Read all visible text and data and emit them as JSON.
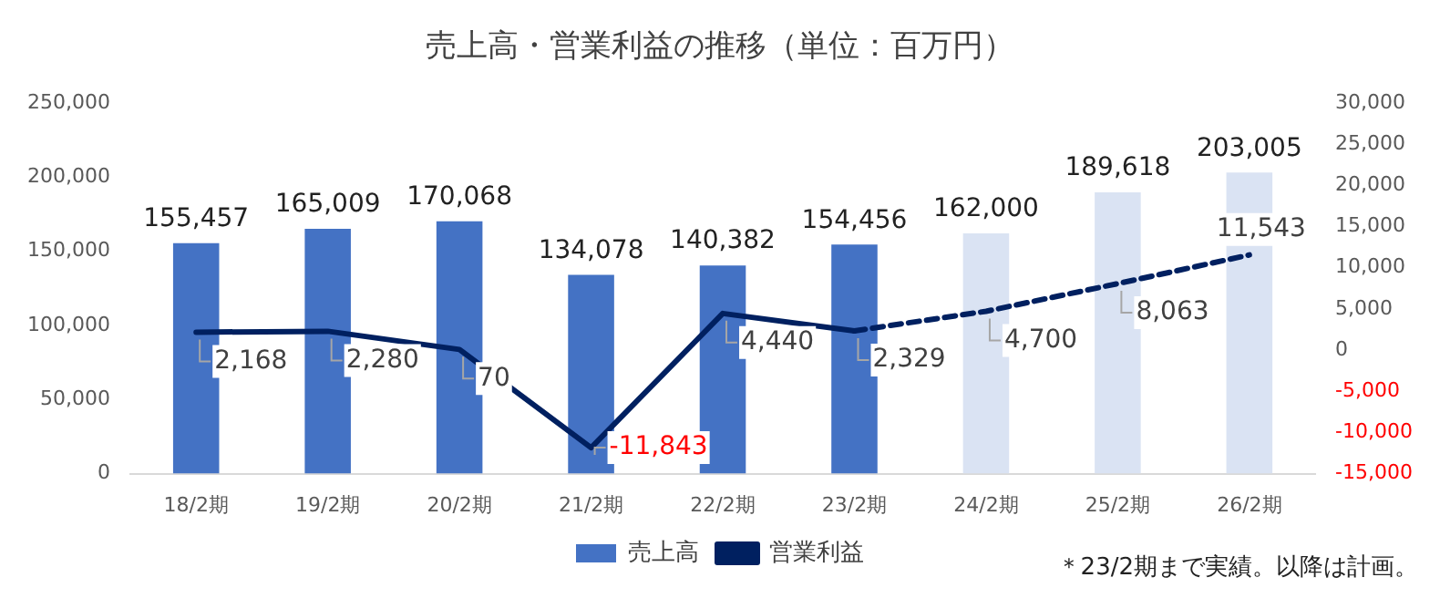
{
  "chart_data": {
    "type": "bar",
    "title": "売上高・営業利益の推移（単位：百万円）",
    "categories": [
      "18/2期",
      "19/2期",
      "20/2期",
      "21/2期",
      "22/2期",
      "23/2期",
      "24/2期",
      "25/2期",
      "26/2期"
    ],
    "series": [
      {
        "name": "売上高",
        "colors": [
          "#4472c4",
          "#4472c4",
          "#4472c4",
          "#4472c4",
          "#4472c4",
          "#4472c4",
          "#dae3f3",
          "#dae3f3",
          "#dae3f3"
        ],
        "values": [
          155457,
          165009,
          170068,
          134078,
          140382,
          154456,
          162000,
          189618,
          203005
        ],
        "value_labels": [
          "155,457",
          "165,009",
          "170,068",
          "134,078",
          "140,382",
          "154,456",
          "162,000",
          "189,618",
          "203,005"
        ]
      },
      {
        "name": "営業利益",
        "type": "line",
        "axis": "y2",
        "color": "#002060",
        "line_style": "solid",
        "values": [
          2168,
          2280,
          70,
          -11843,
          4440,
          2329,
          null,
          null,
          null
        ],
        "value_labels": [
          "2,168",
          "2,280",
          "70",
          "-11,843",
          "4,440",
          "2,329",
          null,
          null,
          null
        ]
      },
      {
        "type": "line",
        "axis": "y2",
        "color": "#002060",
        "line_style": "dashed",
        "values": [
          null,
          null,
          null,
          null,
          null,
          2329,
          4700,
          8063,
          11543
        ],
        "value_labels": [
          null,
          null,
          null,
          null,
          null,
          null,
          "4,700",
          "8,063",
          "11,543"
        ]
      }
    ],
    "ylim": [
      0,
      250000
    ],
    "yticks": [
      {
        "value": 0,
        "label": "0"
      },
      {
        "value": 50000,
        "label": "50,000"
      },
      {
        "value": 100000,
        "label": "100,000"
      },
      {
        "value": 150000,
        "label": "150,000"
      },
      {
        "value": 200000,
        "label": "200,000"
      },
      {
        "value": 250000,
        "label": "250,000"
      }
    ],
    "y2lim": [
      -15000,
      30000
    ],
    "y2ticks": [
      {
        "value": -15000,
        "label": "-15,000"
      },
      {
        "value": -10000,
        "label": "-10,000"
      },
      {
        "value": -5000,
        "label": "-5,000"
      },
      {
        "value": 0,
        "label": "0"
      },
      {
        "value": 5000,
        "label": "5,000"
      },
      {
        "value": 10000,
        "label": "10,000"
      },
      {
        "value": 15000,
        "label": "15,000"
      },
      {
        "value": 20000,
        "label": "20,000"
      },
      {
        "value": 25000,
        "label": "25,000"
      },
      {
        "value": 30000,
        "label": "30,000"
      }
    ],
    "grid": false,
    "legend": "bottom",
    "marker": "none",
    "annotations": [
      "＊23/2期まで実績。以降は計画。"
    ]
  }
}
